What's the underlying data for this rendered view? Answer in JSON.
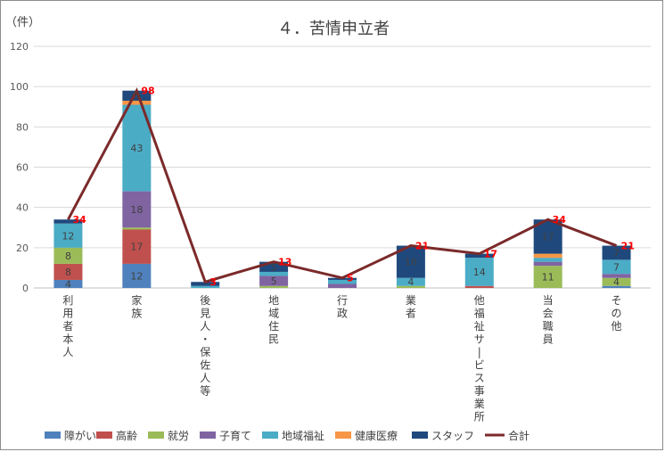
{
  "chart_data": {
    "type": "bar",
    "stacked": true,
    "title": "４．苦情申立者",
    "ylabel": "（件）",
    "ylim": [
      0,
      120
    ],
    "yticks": [
      0,
      20,
      40,
      60,
      80,
      100,
      120
    ],
    "grid": true,
    "legend_position": "bottom",
    "categories": [
      "利用者本人",
      "家族",
      "後見人・保佐人等",
      "地域住民",
      "行政",
      "業者",
      "他福祉サービス事業所",
      "当会職員",
      "その他"
    ],
    "series": [
      {
        "name": "障がい",
        "color": "#4f81bd",
        "values": [
          4,
          12,
          0,
          0,
          0,
          0,
          0,
          0,
          1
        ]
      },
      {
        "name": "高齢",
        "color": "#c0504d",
        "values": [
          8,
          17,
          0,
          0,
          0,
          0,
          1,
          0,
          0
        ]
      },
      {
        "name": "就労",
        "color": "#9bbb59",
        "values": [
          8,
          1,
          0,
          1,
          0,
          1,
          0,
          11,
          4
        ]
      },
      {
        "name": "子育て",
        "color": "#8064a2",
        "values": [
          0,
          18,
          0,
          5,
          2,
          0,
          0,
          2,
          2
        ]
      },
      {
        "name": "地域福祉",
        "color": "#4bacc6",
        "values": [
          12,
          43,
          1,
          2,
          2,
          4,
          14,
          2,
          7
        ]
      },
      {
        "name": "健康医療",
        "color": "#f79646",
        "values": [
          0,
          2,
          0,
          0,
          0,
          0,
          0,
          2,
          0
        ]
      },
      {
        "name": "スタッフ",
        "color": "#1f497d",
        "values": [
          2,
          5,
          2,
          5,
          1,
          16,
          2,
          17,
          7
        ]
      }
    ],
    "total": {
      "name": "合計",
      "color": "#7b2a2a",
      "values": [
        34,
        98,
        3,
        13,
        5,
        21,
        17,
        34,
        21
      ]
    }
  }
}
